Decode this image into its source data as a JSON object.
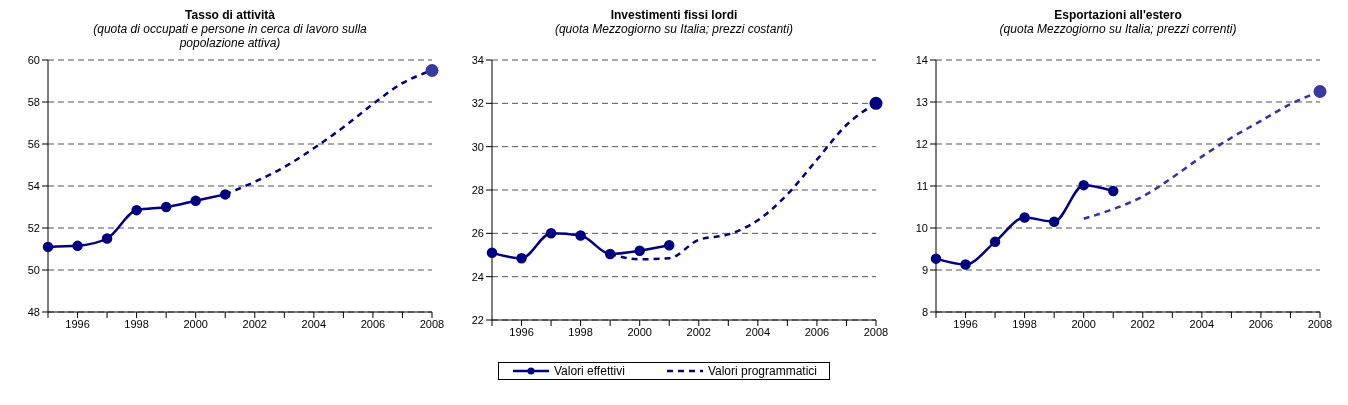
{
  "chart_data": [
    {
      "type": "line",
      "title": "Tasso di attività",
      "subtitle": "(quota di occupati e persone in cerca di lavoro sulla popolazione attiva)",
      "categories": [
        null,
        "1996",
        null,
        "1998",
        null,
        "2000",
        null,
        "2002",
        null,
        "2004",
        null,
        "2006",
        null,
        "2008"
      ],
      "series": [
        {
          "color": "#000080",
          "marker": "circle",
          "line_style": "solid",
          "values": [
            51.1,
            51.15,
            51.5,
            52.85,
            53.0,
            53.3,
            53.6,
            null,
            null,
            null,
            null,
            null,
            null,
            null
          ]
        },
        {
          "color": "#000080",
          "marker": "none",
          "line_style": "dashed",
          "values": [
            null,
            null,
            null,
            null,
            null,
            null,
            53.6,
            54.2,
            54.9,
            55.8,
            56.8,
            57.9,
            58.9,
            59.5
          ]
        },
        {
          "type": "scatter",
          "color": "#3a3a9e",
          "values": [
            null,
            null,
            null,
            null,
            null,
            null,
            null,
            null,
            null,
            null,
            null,
            null,
            null,
            59.5
          ]
        }
      ],
      "ylim": [
        48,
        60
      ],
      "yticks": [
        48,
        50,
        52,
        54,
        56,
        58,
        60
      ],
      "grid": "y",
      "legend": false
    },
    {
      "type": "line",
      "title": "Investimenti fissi lordi",
      "subtitle": "(quota Mezzogiorno su Italia; prezzi costanti)",
      "categories": [
        null,
        "1996",
        null,
        "1998",
        null,
        "2000",
        null,
        "2002",
        null,
        "2004",
        null,
        "2006",
        null,
        "2008"
      ],
      "series": [
        {
          "name": "Valori effettivi",
          "color": "#000080",
          "marker": "circle",
          "line_style": "solid",
          "values": [
            25.1,
            24.85,
            26.0,
            25.9,
            25.05,
            25.2,
            25.45,
            null,
            null,
            null,
            null,
            null,
            null,
            null
          ]
        },
        {
          "name": "Valori programmatici",
          "color": "#000080",
          "marker": "none",
          "line_style": "dashed",
          "values": [
            null,
            null,
            null,
            null,
            25.05,
            24.8,
            24.85,
            25.7,
            25.95,
            26.6,
            27.8,
            29.4,
            31.0,
            32.0
          ]
        },
        {
          "type": "scatter",
          "color": "#000080",
          "values": [
            null,
            null,
            null,
            null,
            null,
            null,
            null,
            null,
            null,
            null,
            null,
            null,
            null,
            32.0
          ]
        }
      ],
      "ylim": [
        22,
        34
      ],
      "yticks": [
        22,
        24,
        26,
        28,
        30,
        32,
        34
      ],
      "grid": "y",
      "legend": "bottom"
    },
    {
      "type": "line",
      "title": "Esportazioni all'estero",
      "subtitle": "(quota Mezzogiorno su Italia; prezzi correnti)",
      "categories": [
        null,
        "1996",
        null,
        "1998",
        null,
        "2000",
        null,
        "2002",
        null,
        "2004",
        null,
        "2006",
        null,
        "2008"
      ],
      "series": [
        {
          "color": "#000080",
          "marker": "circle",
          "line_style": "solid",
          "values": [
            9.27,
            9.13,
            9.67,
            10.25,
            10.15,
            11.02,
            10.88,
            null,
            null,
            null,
            null,
            null,
            null,
            null
          ]
        },
        {
          "color": "#3333a8",
          "marker": "none",
          "line_style": "dashed",
          "values": [
            null,
            null,
            null,
            null,
            null,
            10.22,
            10.45,
            10.75,
            11.2,
            11.7,
            12.15,
            12.55,
            12.95,
            13.25
          ]
        },
        {
          "type": "scatter",
          "color": "#3a3a9e",
          "values": [
            null,
            null,
            null,
            null,
            null,
            null,
            null,
            null,
            null,
            null,
            null,
            null,
            null,
            13.25
          ]
        }
      ],
      "ylim": [
        8,
        14
      ],
      "yticks": [
        8,
        9,
        10,
        11,
        12,
        13,
        14
      ],
      "grid": "y",
      "legend": false
    }
  ]
}
